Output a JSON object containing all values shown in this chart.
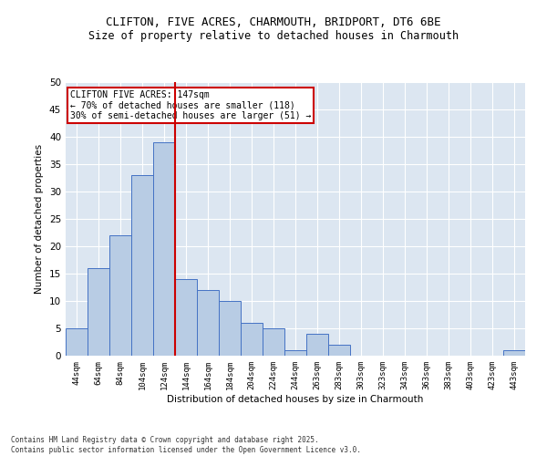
{
  "title_line1": "CLIFTON, FIVE ACRES, CHARMOUTH, BRIDPORT, DT6 6BE",
  "title_line2": "Size of property relative to detached houses in Charmouth",
  "xlabel": "Distribution of detached houses by size in Charmouth",
  "ylabel": "Number of detached properties",
  "bar_labels": [
    "44sqm",
    "64sqm",
    "84sqm",
    "104sqm",
    "124sqm",
    "144sqm",
    "164sqm",
    "184sqm",
    "204sqm",
    "224sqm",
    "244sqm",
    "263sqm",
    "283sqm",
    "303sqm",
    "323sqm",
    "343sqm",
    "363sqm",
    "383sqm",
    "403sqm",
    "423sqm",
    "443sqm"
  ],
  "bar_values": [
    5,
    16,
    22,
    33,
    39,
    14,
    12,
    10,
    6,
    5,
    1,
    4,
    2,
    0,
    0,
    0,
    0,
    0,
    0,
    0,
    1
  ],
  "bar_color": "#b8cce4",
  "bar_edge_color": "#4472c4",
  "bg_color": "#dce6f1",
  "grid_color": "#ffffff",
  "vline_x": 4.5,
  "vline_color": "#cc0000",
  "annotation_title": "CLIFTON FIVE ACRES: 147sqm",
  "annotation_line1": "← 70% of detached houses are smaller (118)",
  "annotation_line2": "30% of semi-detached houses are larger (51) →",
  "annotation_box_color": "#cc0000",
  "ylim": [
    0,
    50
  ],
  "yticks": [
    0,
    5,
    10,
    15,
    20,
    25,
    30,
    35,
    40,
    45,
    50
  ],
  "footnote1": "Contains HM Land Registry data © Crown copyright and database right 2025.",
  "footnote2": "Contains public sector information licensed under the Open Government Licence v3.0."
}
